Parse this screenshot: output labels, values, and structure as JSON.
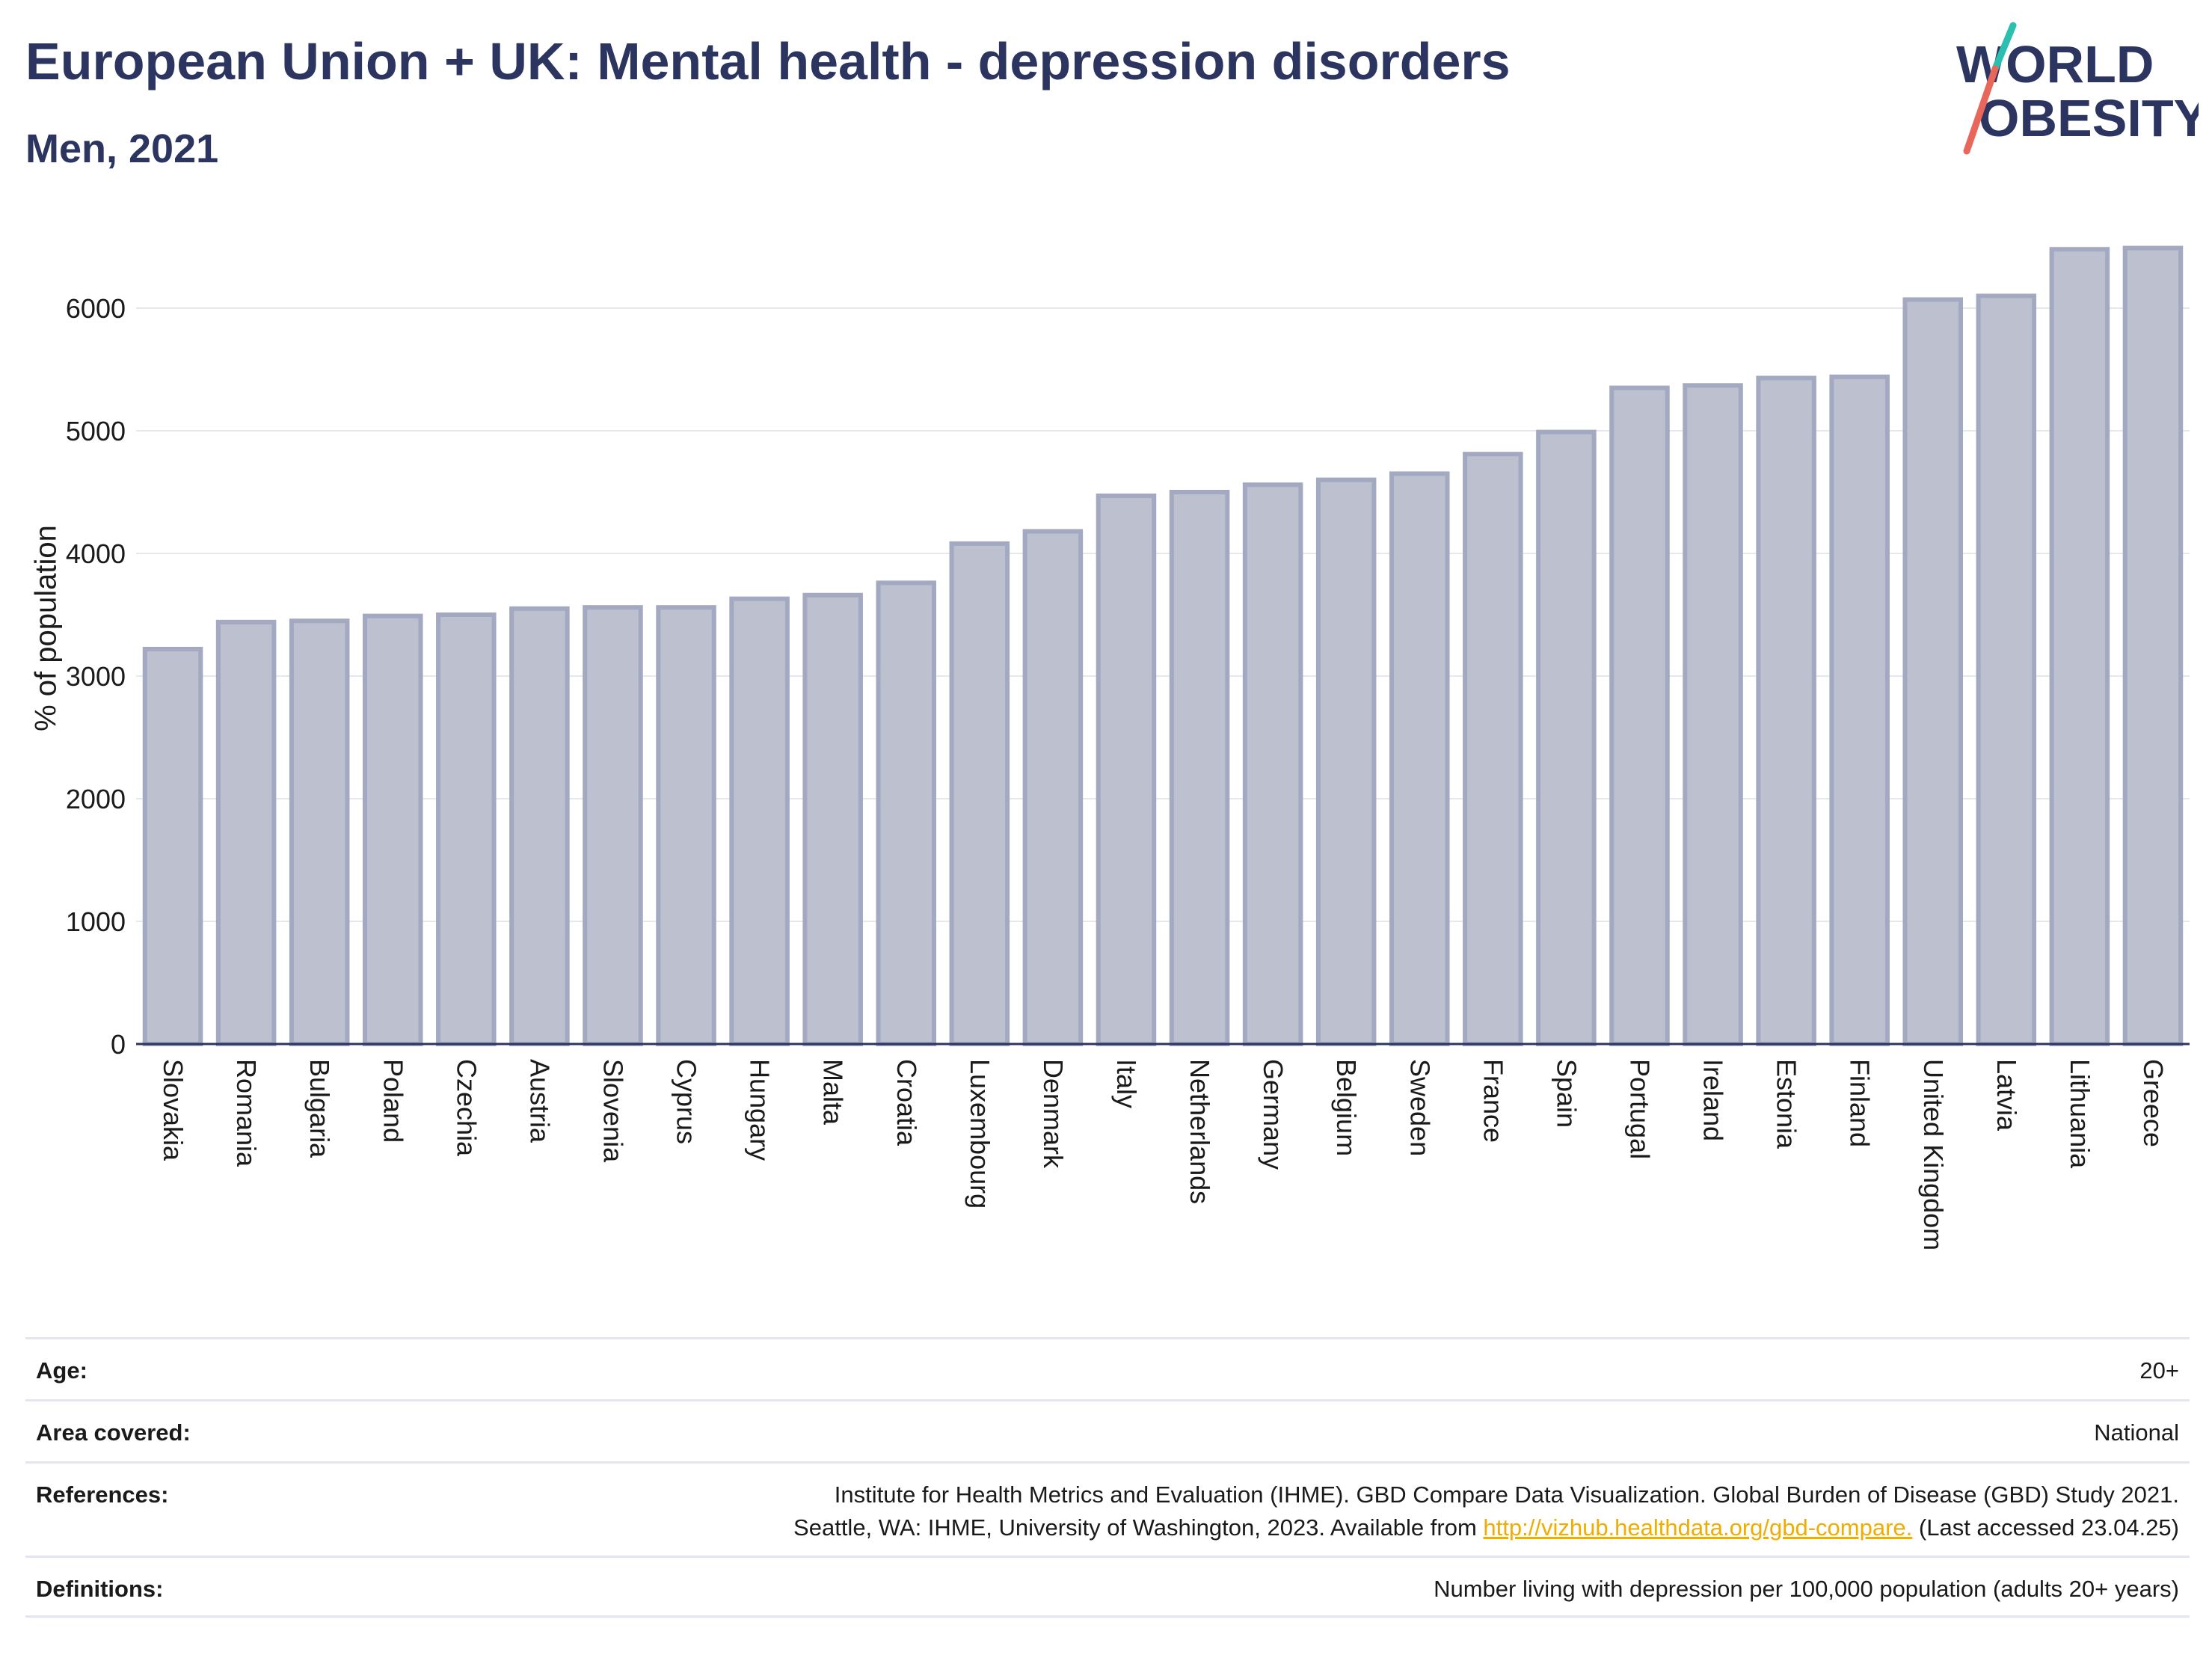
{
  "header": {
    "title": "European Union + UK: Mental health - depression disorders",
    "subtitle": "Men, 2021"
  },
  "logo": {
    "line1": "WORLD",
    "line2": "OBESITY",
    "accent_teal": "#2bbfb0",
    "accent_red": "#e8675a",
    "text_color": "#2b3560"
  },
  "chart_data": {
    "type": "bar",
    "ylabel": "% of population",
    "xlabel": "",
    "ylim": [
      0,
      6700
    ],
    "yticks": [
      0,
      1000,
      2000,
      3000,
      4000,
      5000,
      6000
    ],
    "grid": true,
    "bar_fill": "#bcc0cf",
    "bar_stroke": "#a3a9c0",
    "categories": [
      "Slovakia",
      "Romania",
      "Bulgaria",
      "Poland",
      "Czechia",
      "Austria",
      "Slovenia",
      "Cyprus",
      "Hungary",
      "Malta",
      "Croatia",
      "Luxembourg",
      "Denmark",
      "Italy",
      "Netherlands",
      "Germany",
      "Belgium",
      "Sweden",
      "France",
      "Spain",
      "Portugal",
      "Ireland",
      "Estonia",
      "Finland",
      "United Kingdom",
      "Latvia",
      "Lithuania",
      "Greece"
    ],
    "values": [
      3220,
      3440,
      3450,
      3490,
      3500,
      3550,
      3560,
      3560,
      3630,
      3660,
      3760,
      4080,
      4180,
      4470,
      4500,
      4560,
      4600,
      4650,
      4810,
      4990,
      5350,
      5370,
      5430,
      5440,
      6070,
      6100,
      6480,
      6490
    ]
  },
  "info_table": [
    {
      "key": "Age:",
      "value": "20+"
    },
    {
      "key": "Area covered:",
      "value": "National"
    },
    {
      "key": "References:",
      "value_line1": "Institute for Health Metrics and Evaluation (IHME). GBD Compare Data Visualization. Global Burden of Disease (GBD) Study 2021.",
      "value_line2_pre": "Seattle, WA: IHME, University of Washington, 2023. Available from ",
      "value_link": "http://vizhub.healthdata.org/gbd-compare.",
      "value_line2_post": " (Last accessed 23.04.25)"
    },
    {
      "key": "Definitions:",
      "value": "Number living with depression per 100,000 population (adults 20+ years)"
    }
  ]
}
